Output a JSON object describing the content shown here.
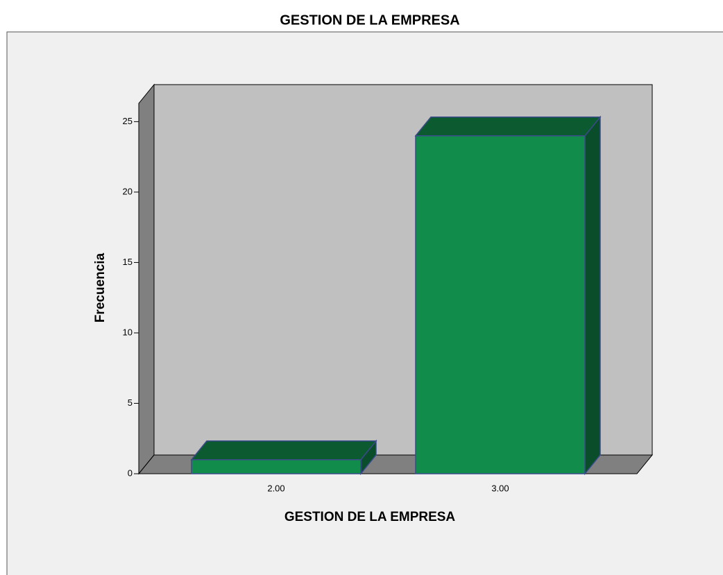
{
  "chart_data": {
    "type": "bar3d",
    "title": "GESTION DE LA EMPRESA",
    "x_label": "GESTION DE LA EMPRESA",
    "y_label": "Frecuencia",
    "categories": [
      "2.00",
      "3.00"
    ],
    "values": [
      1,
      24
    ],
    "color": "#128c4a",
    "ylim": [
      0,
      26.3
    ],
    "yticks": [
      0,
      5,
      10,
      15,
      20,
      25
    ]
  }
}
